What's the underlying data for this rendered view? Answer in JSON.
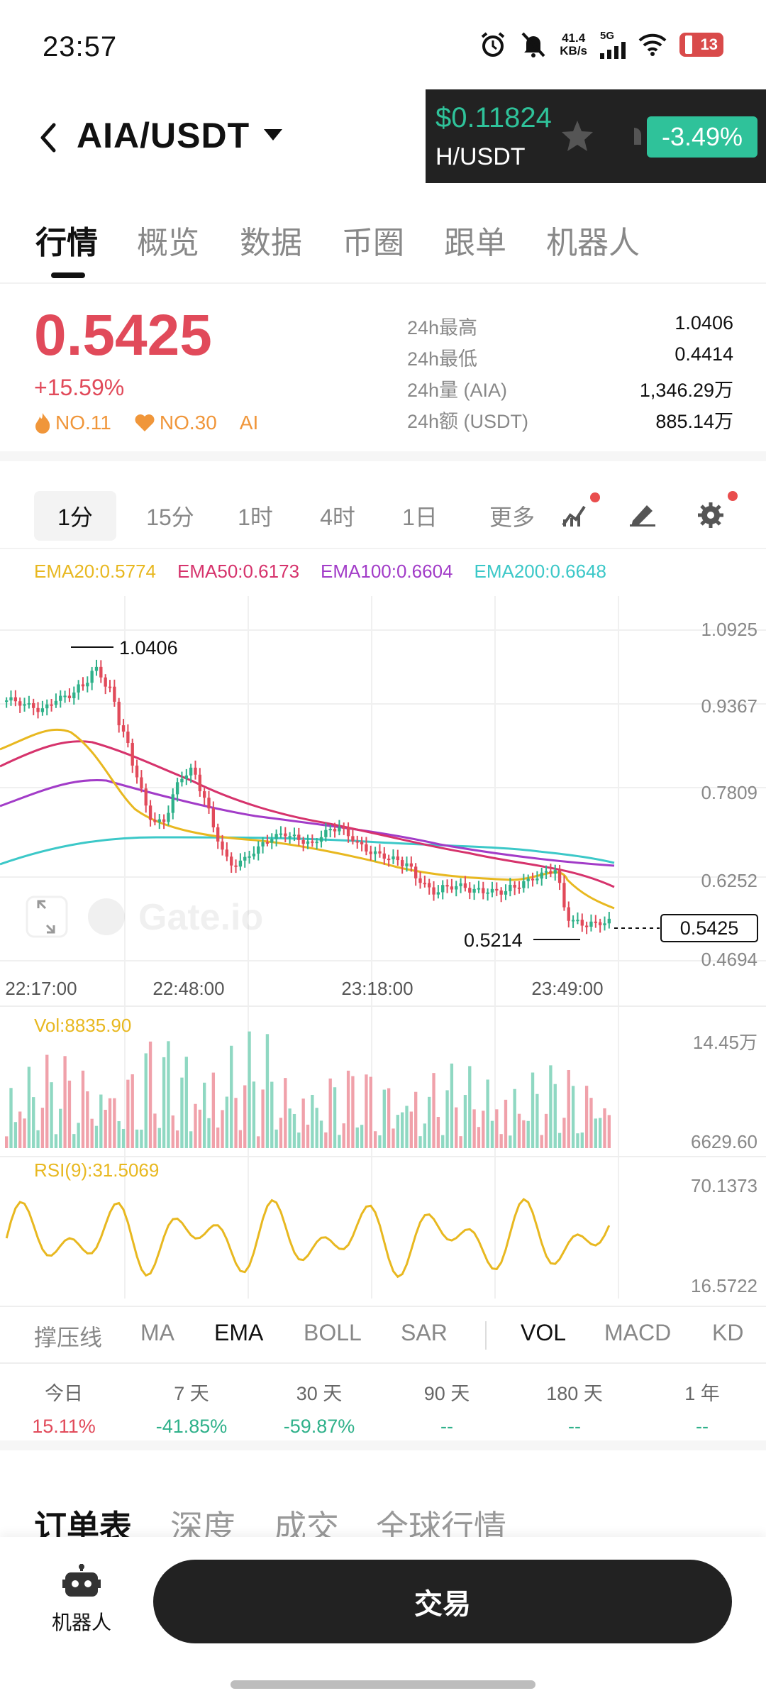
{
  "status_bar": {
    "time": "23:57",
    "net_speed_value": "41.4",
    "net_speed_unit": "KB/s",
    "network": "5G",
    "battery": "13",
    "icons": [
      "alarm-icon",
      "mute-icon",
      "signal-icon",
      "wifi-icon",
      "battery-icon"
    ]
  },
  "header": {
    "pair": "AIA/USDT",
    "floating_ticker": {
      "price": "$0.11824",
      "pair": "H/USDT",
      "change": "-3.49%"
    }
  },
  "tabs": [
    {
      "label": "行情",
      "active": true
    },
    {
      "label": "概览"
    },
    {
      "label": "数据"
    },
    {
      "label": "币圈"
    },
    {
      "label": "跟单"
    },
    {
      "label": "机器人"
    }
  ],
  "price": {
    "last": "0.5425",
    "change": "+15.59%",
    "badges": [
      "NO.11",
      "NO.30",
      "AI"
    ]
  },
  "stats": [
    {
      "label": "24h最高",
      "value": "1.0406"
    },
    {
      "label": "24h最低",
      "value": "0.4414"
    },
    {
      "label": "24h量 (AIA)",
      "value": "1,346.29万"
    },
    {
      "label": "24h额 (USDT)",
      "value": "885.14万"
    }
  ],
  "intervals": [
    "1分",
    "15分",
    "1时",
    "4时",
    "1日",
    "更多"
  ],
  "ema_legend": [
    {
      "label": "EMA20:0.5774",
      "color": "#e8b820"
    },
    {
      "label": "EMA50:0.6173",
      "color": "#d6336c"
    },
    {
      "label": "EMA100:0.6604",
      "color": "#a23cc8"
    },
    {
      "label": "EMA200:0.6648",
      "color": "#3cc8c8"
    }
  ],
  "chart": {
    "y_ticks": [
      "1.0925",
      "0.9367",
      "0.7809",
      "0.6252",
      "0.4694"
    ],
    "x_ticks": [
      "22:17:00",
      "22:48:00",
      "23:18:00",
      "23:49:00"
    ],
    "high_label": "1.0406",
    "low_label": "0.5214",
    "current_label": "0.5425",
    "watermark": "Gate.io",
    "vol_label": "Vol:8835.90",
    "vol_ticks": [
      "14.45万",
      "6629.60"
    ],
    "rsi_label": "RSI(9):31.5069",
    "rsi_ticks": [
      "70.1373",
      "16.5722"
    ]
  },
  "chart_data": {
    "type": "candlestick",
    "y_range": [
      0.4694,
      1.0925
    ],
    "high": 1.0406,
    "low": 0.5214,
    "current": 0.5425,
    "x_ticks": [
      "22:17:00",
      "22:48:00",
      "23:18:00",
      "23:49:00"
    ],
    "ema": {
      "EMA20": [
        0.93,
        0.94,
        0.95,
        0.96,
        0.95,
        0.85,
        0.76,
        0.7,
        0.66,
        0.65,
        0.64,
        0.64,
        0.63,
        0.62,
        0.62,
        0.61,
        0.6,
        0.6,
        0.61,
        0.62,
        0.6,
        0.577
      ],
      "EMA50": [
        0.9,
        0.91,
        0.92,
        0.93,
        0.92,
        0.88,
        0.83,
        0.78,
        0.74,
        0.72,
        0.7,
        0.69,
        0.68,
        0.67,
        0.66,
        0.65,
        0.64,
        0.64,
        0.63,
        0.63,
        0.625,
        0.617
      ],
      "EMA100": [
        0.81,
        0.83,
        0.85,
        0.86,
        0.86,
        0.84,
        0.81,
        0.79,
        0.76,
        0.75,
        0.74,
        0.73,
        0.72,
        0.71,
        0.7,
        0.69,
        0.68,
        0.675,
        0.67,
        0.667,
        0.664,
        0.66
      ],
      "EMA200": [
        0.72,
        0.73,
        0.74,
        0.75,
        0.76,
        0.76,
        0.76,
        0.755,
        0.75,
        0.745,
        0.74,
        0.735,
        0.73,
        0.725,
        0.72,
        0.71,
        0.7,
        0.69,
        0.68,
        0.675,
        0.67,
        0.665
      ]
    },
    "closes": [
      0.96,
      0.95,
      0.94,
      0.96,
      0.97,
      0.99,
      1.02,
      0.98,
      0.9,
      0.82,
      0.74,
      0.73,
      0.8,
      0.83,
      0.78,
      0.7,
      0.65,
      0.66,
      0.68,
      0.7,
      0.71,
      0.7,
      0.69,
      0.71,
      0.72,
      0.7,
      0.68,
      0.67,
      0.66,
      0.65,
      0.62,
      0.6,
      0.61,
      0.61,
      0.6,
      0.6,
      0.6,
      0.61,
      0.62,
      0.63,
      0.64,
      0.55,
      0.54,
      0.54,
      0.5425
    ],
    "volume_max": "14.45万",
    "volume_min": "6629.60",
    "volume_current": 8835.9,
    "rsi_current": 31.5069,
    "rsi_range": [
      16.5722,
      70.1373
    ]
  },
  "indicators": {
    "main": [
      "撑压线",
      "MA",
      "EMA",
      "BOLL",
      "SAR"
    ],
    "sub": [
      "VOL",
      "MACD",
      "KD"
    ],
    "active_main": "EMA",
    "active_sub": "VOL"
  },
  "performance": [
    {
      "label": "今日",
      "value": "15.11%",
      "dir": "up"
    },
    {
      "label": "7 天",
      "value": "-41.85%",
      "dir": "down"
    },
    {
      "label": "30 天",
      "value": "-59.87%",
      "dir": "down"
    },
    {
      "label": "90 天",
      "value": "--",
      "dir": "neutral"
    },
    {
      "label": "180 天",
      "value": "--",
      "dir": "neutral"
    },
    {
      "label": "1 年",
      "value": "--",
      "dir": "neutral"
    }
  ],
  "book_tabs": [
    "订单表",
    "深度",
    "成交",
    "全球行情"
  ],
  "bottom": {
    "robot_label": "机器人",
    "trade_label": "交易"
  }
}
